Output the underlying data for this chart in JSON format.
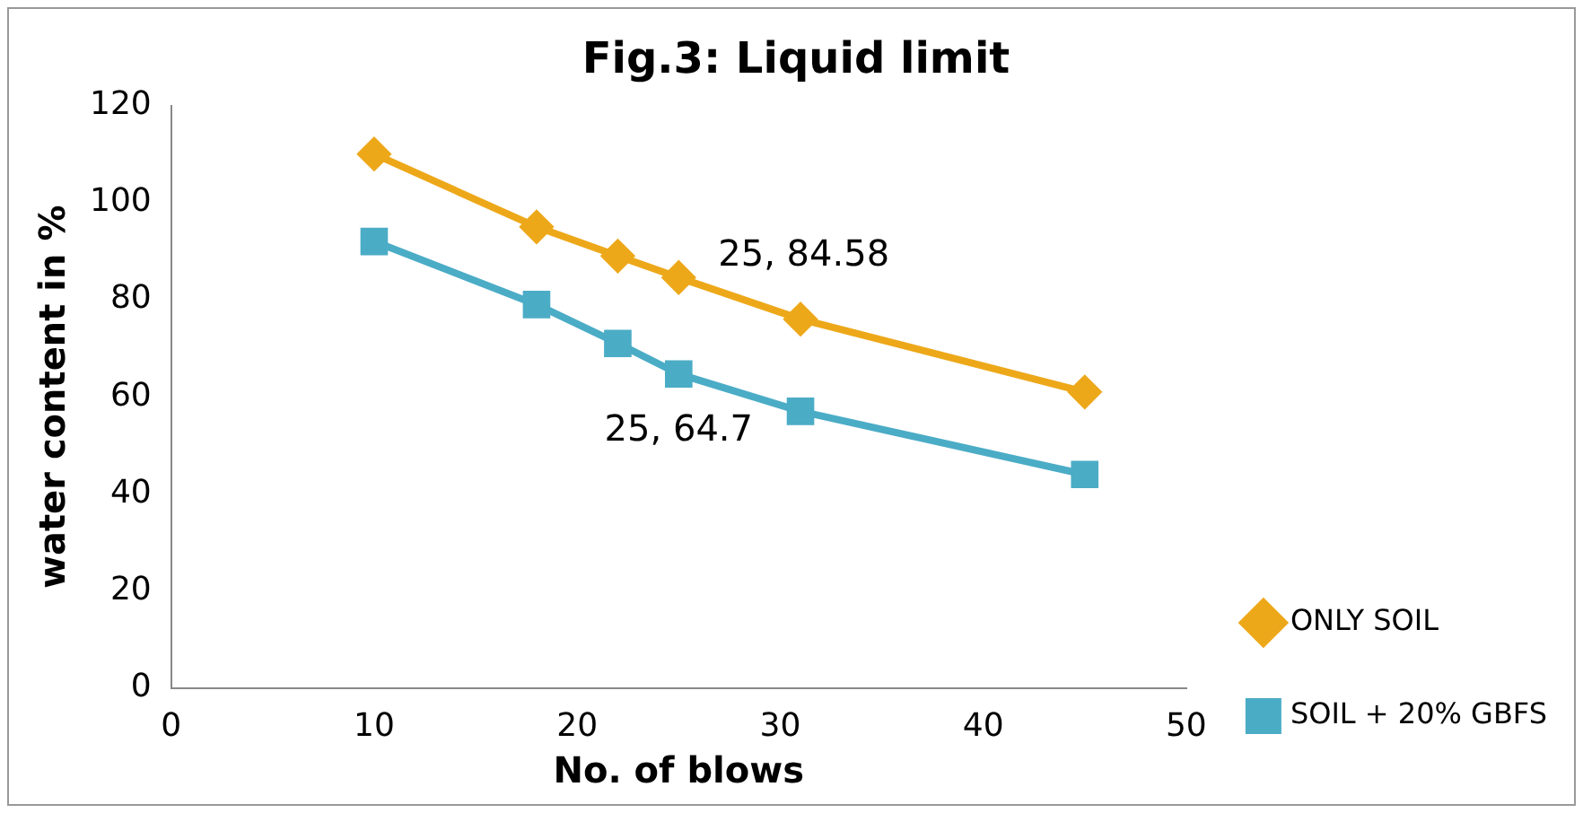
{
  "chart_data": {
    "type": "line",
    "title": "Fig.3: Liquid limit",
    "xlabel": "No. of blows",
    "ylabel": "water content in %",
    "x": [
      10,
      18,
      22,
      25,
      31,
      45
    ],
    "series": [
      {
        "name": "ONLY SOIL",
        "color": "#eda81a",
        "marker": "diamond",
        "values": [
          110,
          95,
          89,
          84.58,
          76,
          61
        ]
      },
      {
        "name": "SOIL + 20% GBFS",
        "color": "#4bacc6",
        "marker": "square",
        "values": [
          92,
          79,
          71,
          64.7,
          57,
          44
        ]
      }
    ],
    "xlim": [
      0,
      50
    ],
    "xticks": [
      0,
      10,
      20,
      30,
      40,
      50
    ],
    "ylim": [
      0,
      120
    ],
    "yticks": [
      0,
      20,
      40,
      60,
      80,
      100,
      120
    ],
    "annotations": [
      {
        "text": "25, 84.58",
        "x": 25,
        "y": 84.58
      },
      {
        "text": "25, 64.7",
        "x": 25,
        "y": 64.7
      }
    ],
    "grid": false,
    "legend": "right",
    "line_style": "solid"
  }
}
